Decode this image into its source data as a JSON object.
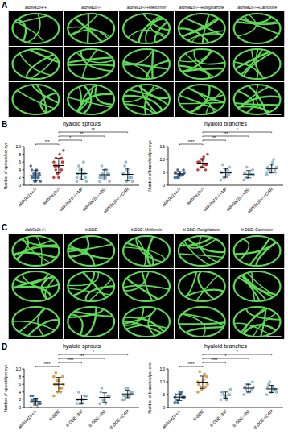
{
  "panel_labels": [
    "A",
    "B",
    "C",
    "D"
  ],
  "image_panels": [
    {
      "columns": [
        "aldh9a1b+/+",
        "aldh9a1b-/-",
        "aldh9a1b-/-+Metformin",
        "aldh9a1b-/-+Rosiglitazone",
        "aldh9a1b-/-+Carnosine"
      ]
    },
    {
      "columns": [
        "aldh9a1b+/+",
        "tt-DDE",
        "tt-DDE+Metformin",
        "tt-DDE+Rosiglitazone",
        "tt-DDE+Carnosine"
      ]
    }
  ],
  "chart_data": [
    {
      "type": "dotplot",
      "title": "hyaloid sprouts",
      "y_label": "Number of sprouts/per eye",
      "categories": [
        "aldh9a1b+/+",
        "aldh9a1b-/-",
        "aldh9a1b-/-+MF",
        "aldh9a1b-/-+RG",
        "aldh9a1b-/-+CAR"
      ],
      "values": [
        2.5,
        5.1,
        3,
        2.7,
        2.8
      ],
      "errors": [
        1.3,
        1.9,
        1.5,
        1.3,
        1.6
      ],
      "points": [
        [
          0,
          1,
          2,
          2,
          3,
          3,
          2,
          4,
          1,
          3,
          2,
          5,
          2,
          3,
          4,
          1
        ],
        [
          2,
          3,
          4,
          5,
          5,
          6,
          7,
          8,
          9,
          5,
          4,
          6,
          3,
          7,
          5,
          2,
          6,
          4
        ],
        [
          1,
          2,
          3,
          3,
          4,
          2,
          5,
          3,
          1,
          4,
          6,
          2,
          3
        ],
        [
          1,
          2,
          3,
          2,
          4,
          3,
          5,
          2,
          1,
          3,
          4,
          2
        ],
        [
          0,
          1,
          2,
          3,
          4,
          2,
          5,
          3,
          1,
          6,
          2,
          3,
          4
        ]
      ],
      "colors": [
        "#3b78b5",
        "#e2342f",
        "#8ec9e3",
        "#8ec9e3",
        "#8ec9e3"
      ],
      "ylim": [
        0,
        10
      ],
      "yticks": [
        0,
        2,
        4,
        6,
        8,
        10
      ],
      "grid": false,
      "significance": [
        {
          "from": 0,
          "to": 1,
          "label": "***"
        },
        {
          "from": 1,
          "to": 2,
          "label": "*"
        },
        {
          "from": 1,
          "to": 3,
          "label": "**"
        },
        {
          "from": 1,
          "to": 4,
          "label": "**"
        }
      ]
    },
    {
      "type": "dotplot",
      "title": "hyaloid branches",
      "y_label": "Number of branches/per eye",
      "categories": [
        "aldh9a1b+/+",
        "aldh9a1b-/-",
        "aldh9a1b-/-+MF",
        "aldh9a1b-/-+RG",
        "aldh9a1b-/-+CAR"
      ],
      "values": [
        4.4,
        8.6,
        4.8,
        4.3,
        6.5
      ],
      "errors": [
        0.9,
        1.7,
        1.7,
        1.4,
        1.7
      ],
      "points": [
        [
          3,
          4,
          4,
          5,
          5,
          6,
          3,
          4,
          5,
          6,
          4,
          5,
          3,
          4
        ],
        [
          6,
          7,
          8,
          9,
          10,
          8,
          9,
          11,
          12,
          7,
          8,
          9,
          10,
          6
        ],
        [
          2,
          3,
          4,
          5,
          6,
          7,
          8,
          4,
          5,
          3,
          6,
          5
        ],
        [
          2,
          3,
          4,
          5,
          4,
          6,
          3,
          5,
          4,
          7
        ],
        [
          4,
          5,
          6,
          7,
          8,
          5,
          6,
          9,
          7,
          6,
          10,
          5
        ]
      ],
      "colors": [
        "#3b78b5",
        "#e2342f",
        "#8ec9e3",
        "#8ec9e3",
        "#8ec9e3"
      ],
      "ylim": [
        0,
        15
      ],
      "yticks": [
        0,
        5,
        10,
        15
      ],
      "grid": false,
      "significance": [
        {
          "from": 0,
          "to": 1,
          "label": "****"
        },
        {
          "from": 1,
          "to": 2,
          "label": "**"
        },
        {
          "from": 1,
          "to": 3,
          "label": "***"
        },
        {
          "from": 1,
          "to": 4,
          "label": "*"
        }
      ]
    },
    {
      "type": "dotplot",
      "title": "hyaloid sprouts",
      "y_label": "Number of sprouts/per eye",
      "categories": [
        "aldh9a1b+/+",
        "tt-DDE",
        "tt-DDE+MF",
        "tt-DDE+RG",
        "tt-DDE+CAR"
      ],
      "values": [
        1.5,
        6,
        2.2,
        2.6,
        3.5
      ],
      "errors": [
        0.9,
        1.8,
        1.0,
        1.2,
        1.0
      ],
      "points": [
        [
          0,
          1,
          1,
          2,
          2,
          1,
          3,
          2,
          1,
          2,
          0,
          3
        ],
        [
          3,
          4,
          5,
          6,
          7,
          8,
          9,
          5,
          6,
          7,
          4,
          8,
          6
        ],
        [
          1,
          2,
          3,
          2,
          1,
          3,
          4,
          2,
          3,
          1
        ],
        [
          1,
          2,
          3,
          4,
          2,
          3,
          5,
          1,
          3,
          2
        ],
        [
          2,
          3,
          4,
          3,
          5,
          4,
          2,
          3,
          4,
          5,
          3
        ]
      ],
      "colors": [
        "#3b78b5",
        "#f2a33a",
        "#8ec9e3",
        "#8ec9e3",
        "#8ec9e3"
      ],
      "ylim": [
        0,
        10
      ],
      "yticks": [
        0,
        2,
        4,
        6,
        8,
        10
      ],
      "grid": false,
      "significance": [
        {
          "from": 0,
          "to": 1,
          "label": "****"
        },
        {
          "from": 1,
          "to": 2,
          "label": "****"
        },
        {
          "from": 1,
          "to": 3,
          "label": "***"
        },
        {
          "from": 1,
          "to": 4,
          "label": "*"
        }
      ]
    },
    {
      "type": "dotplot",
      "title": "hyaloid branches",
      "y_label": "Number of branches/per eye",
      "categories": [
        "aldh9a1b+/+",
        "tt-DDE",
        "tt-DDE+MF",
        "tt-DDE+RG",
        "tt-DDE+CAR"
      ],
      "values": [
        4,
        9.8,
        4.8,
        7.5,
        7.2
      ],
      "errors": [
        1.3,
        2.4,
        1.2,
        1.5,
        1.4
      ],
      "points": [
        [
          2,
          3,
          4,
          5,
          6,
          4,
          3,
          5,
          4,
          2,
          6,
          4
        ],
        [
          6,
          7,
          8,
          9,
          10,
          12,
          14,
          11,
          9,
          8,
          13,
          10
        ],
        [
          3,
          4,
          5,
          6,
          4,
          5,
          6,
          3,
          7,
          5
        ],
        [
          5,
          6,
          7,
          8,
          9,
          10,
          7,
          6,
          8,
          9
        ],
        [
          5,
          6,
          7,
          8,
          6,
          7,
          9,
          8,
          6,
          10,
          7
        ]
      ],
      "colors": [
        "#3b78b5",
        "#f2a33a",
        "#8ec9e3",
        "#8ec9e3",
        "#8ec9e3"
      ],
      "ylim": [
        0,
        15
      ],
      "yticks": [
        0,
        5,
        10,
        15
      ],
      "grid": false,
      "significance": [
        {
          "from": 0,
          "to": 1,
          "label": "****"
        },
        {
          "from": 1,
          "to": 2,
          "label": "****"
        },
        {
          "from": 1,
          "to": 3,
          "label": "*"
        },
        {
          "from": 1,
          "to": 4,
          "label": "*"
        }
      ]
    }
  ]
}
